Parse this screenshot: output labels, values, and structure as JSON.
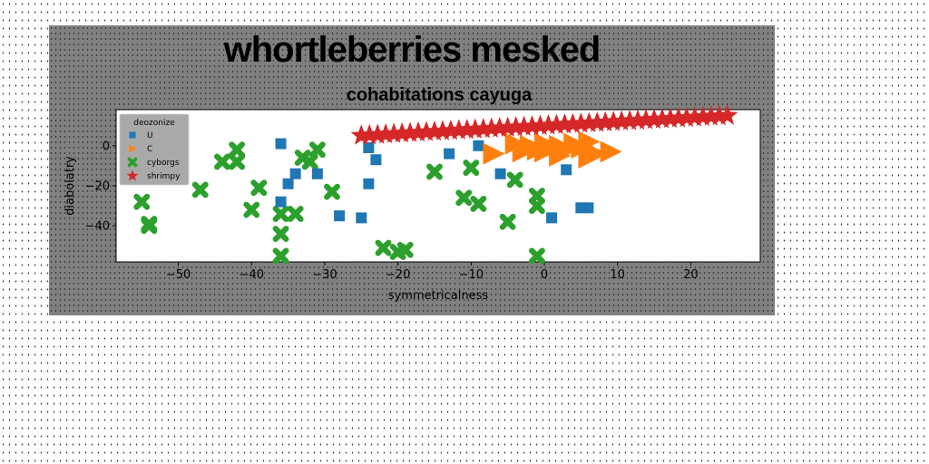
{
  "figure": {
    "suptitle": "whortleberries mesked"
  },
  "chart_data": {
    "type": "scatter",
    "title": "cohabitations cayuga",
    "xlabel": "symmetricalness",
    "ylabel": "diabolatry",
    "xlim": [
      -58.5,
      29.5
    ],
    "ylim": [
      -58,
      18
    ],
    "xticks": [
      -50,
      -40,
      -30,
      -20,
      -10,
      0,
      10,
      20
    ],
    "yticks": [
      -40,
      -20,
      0
    ],
    "grid": false,
    "legend": {
      "title": "deozonize",
      "placement": "upper-left"
    },
    "series": [
      {
        "name": "U",
        "marker": "square",
        "color": "#1f77b4",
        "points": [
          [
            -36,
            1
          ],
          [
            -36,
            -28
          ],
          [
            -35,
            -19
          ],
          [
            -34,
            -14
          ],
          [
            -31,
            -14
          ],
          [
            -28,
            -35
          ],
          [
            -25,
            -36
          ],
          [
            -24,
            -1
          ],
          [
            -24,
            -19
          ],
          [
            -23,
            -7
          ],
          [
            -13,
            -4
          ],
          [
            -9,
            0
          ],
          [
            -6,
            -14
          ],
          [
            1,
            -36
          ],
          [
            3,
            -12
          ],
          [
            5,
            -31
          ],
          [
            6,
            -31
          ],
          [
            6,
            -3
          ]
        ]
      },
      {
        "name": "C",
        "marker": "triangle-right",
        "color": "#ff7f0e",
        "points": [
          [
            -7,
            -4
          ],
          [
            -4,
            1
          ],
          [
            -3,
            -3
          ],
          [
            -2,
            0
          ],
          [
            -1,
            -2
          ],
          [
            0,
            -3
          ],
          [
            0,
            1
          ],
          [
            1,
            -1
          ],
          [
            2,
            0
          ],
          [
            2,
            -5
          ],
          [
            3,
            -2
          ],
          [
            4,
            1
          ],
          [
            5,
            -1
          ],
          [
            6,
            2
          ],
          [
            6,
            -6
          ],
          [
            7,
            -4
          ],
          [
            9,
            -3
          ]
        ]
      },
      {
        "name": "cyborgs",
        "marker": "x",
        "color": "#2ca02c",
        "points": [
          [
            -55,
            -28
          ],
          [
            -54,
            -39
          ],
          [
            -54,
            -40
          ],
          [
            -47,
            -22
          ],
          [
            -44,
            -8
          ],
          [
            -42,
            -2
          ],
          [
            -42,
            -8
          ],
          [
            -40,
            -32
          ],
          [
            -39,
            -21
          ],
          [
            -36,
            -34
          ],
          [
            -36,
            -44
          ],
          [
            -36,
            -55
          ],
          [
            -34,
            -34
          ],
          [
            -33,
            -6
          ],
          [
            -32,
            -8
          ],
          [
            -31,
            -2
          ],
          [
            -29,
            -23
          ],
          [
            -22,
            -51
          ],
          [
            -20,
            -53
          ],
          [
            -19,
            -52
          ],
          [
            -15,
            -13
          ],
          [
            -11,
            -26
          ],
          [
            -10,
            -11
          ],
          [
            -9,
            -29
          ],
          [
            -5,
            -38
          ],
          [
            -4,
            -17
          ],
          [
            -1,
            -25
          ],
          [
            -1,
            -30
          ],
          [
            -1,
            -55
          ]
        ]
      },
      {
        "name": "shrimpy",
        "marker": "star",
        "color": "#d62728",
        "line_start": [
          -25,
          5
        ],
        "line_end": [
          25,
          15
        ],
        "count": 46
      }
    ]
  }
}
